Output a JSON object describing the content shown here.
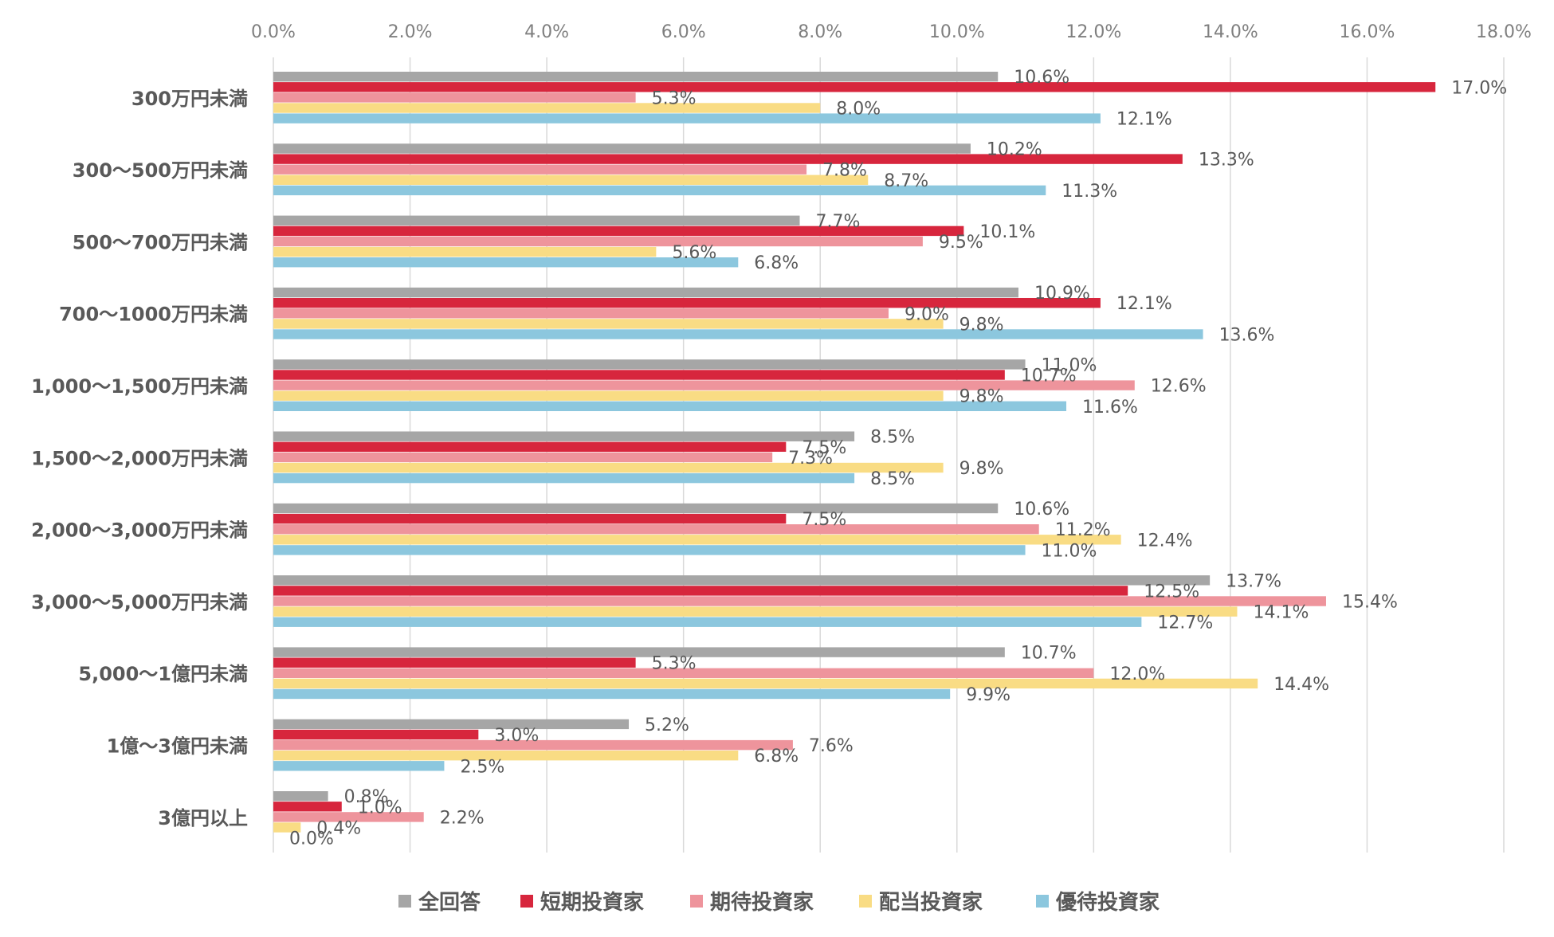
{
  "chart_data": {
    "type": "bar",
    "orientation": "horizontal",
    "title": "",
    "xlabel": "",
    "ylabel": "",
    "xlim": [
      0,
      18
    ],
    "x_ticks": [
      "0.0%",
      "2.0%",
      "4.0%",
      "6.0%",
      "8.0%",
      "10.0%",
      "12.0%",
      "14.0%",
      "16.0%",
      "18.0%"
    ],
    "grid": "vertical",
    "legend_position": "bottom",
    "value_format": "percent_1dp",
    "categories": [
      "300万円未満",
      "300～500万円未満",
      "500～700万円未満",
      "700～1000万円未満",
      "1,000～1,500万円未満",
      "1,500～2,000万円未満",
      "2,000～3,000万円未満",
      "3,000～5,000万円未満",
      "5,000～1億円未満",
      "1億～3億円未満",
      "3億円以上"
    ],
    "series": [
      {
        "name": "全回答",
        "color": "#a6a6a6",
        "values": [
          10.6,
          10.2,
          7.7,
          10.9,
          11.0,
          8.5,
          10.6,
          13.7,
          10.7,
          5.2,
          0.8
        ]
      },
      {
        "name": "短期投資家",
        "color": "#d7263d",
        "values": [
          17.0,
          13.3,
          10.1,
          12.1,
          10.7,
          7.5,
          7.5,
          12.5,
          5.3,
          3.0,
          1.0
        ]
      },
      {
        "name": "期待投資家",
        "color": "#ee949c",
        "values": [
          5.3,
          7.8,
          9.5,
          9.0,
          12.6,
          7.3,
          11.2,
          15.4,
          12.0,
          7.6,
          2.2
        ]
      },
      {
        "name": "配当投資家",
        "color": "#f9dc84",
        "values": [
          8.0,
          8.7,
          5.6,
          9.8,
          9.8,
          9.8,
          12.4,
          14.1,
          14.4,
          6.8,
          0.4
        ]
      },
      {
        "name": "優待投資家",
        "color": "#8cc7de",
        "values": [
          12.1,
          11.3,
          6.8,
          13.6,
          11.6,
          8.5,
          11.0,
          12.7,
          9.9,
          2.5,
          0.0
        ]
      }
    ]
  }
}
